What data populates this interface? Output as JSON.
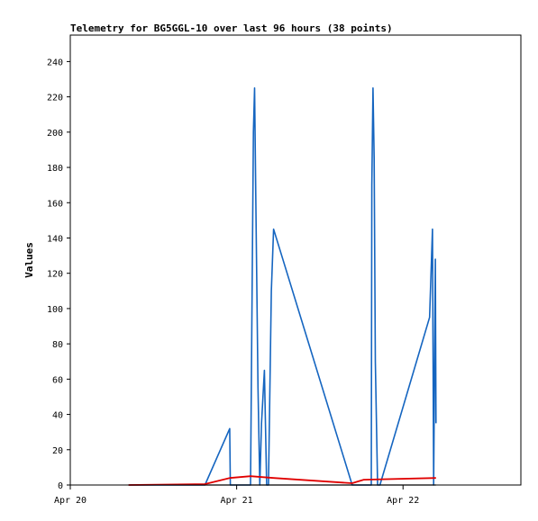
{
  "chart_data": {
    "type": "line",
    "title": "Telemetry for BG5GGL-10 over last 96 hours (38 points)",
    "xlabel": "",
    "ylabel": "Values",
    "xlim": [
      "2024-04-20T00:00",
      "2024-04-22T17:00"
    ],
    "ylim": [
      0,
      255
    ],
    "y_ticks": [
      0,
      20,
      40,
      60,
      80,
      100,
      120,
      140,
      160,
      180,
      200,
      220,
      240
    ],
    "x_ticks": [
      {
        "label": "Apr 20",
        "x": "2024-04-20T00:00"
      },
      {
        "label": "Apr 21",
        "x": "2024-04-21T00:00"
      },
      {
        "label": "Apr 22",
        "x": "2024-04-22T00:00"
      }
    ],
    "grid": false,
    "series": [
      {
        "color": "#1565c0",
        "points": [
          [
            "2024-04-20T08:25",
            0
          ],
          [
            "2024-04-20T19:25",
            0
          ],
          [
            "2024-04-20T23:00",
            32
          ],
          [
            "2024-04-20T23:05",
            0
          ],
          [
            "2024-04-21T02:00",
            0
          ],
          [
            "2024-04-21T02:25",
            200
          ],
          [
            "2024-04-21T02:35",
            225
          ],
          [
            "2024-04-21T02:45",
            165
          ],
          [
            "2024-04-21T03:05",
            55
          ],
          [
            "2024-04-21T03:20",
            0
          ],
          [
            "2024-04-21T03:35",
            35
          ],
          [
            "2024-04-21T04:00",
            65
          ],
          [
            "2024-04-21T04:20",
            0
          ],
          [
            "2024-04-21T04:35",
            0
          ],
          [
            "2024-04-21T05:00",
            110
          ],
          [
            "2024-04-21T05:20",
            145
          ],
          [
            "2024-04-21T16:40",
            0
          ],
          [
            "2024-04-21T18:20",
            0
          ],
          [
            "2024-04-21T19:25",
            0
          ],
          [
            "2024-04-21T19:30",
            170
          ],
          [
            "2024-04-21T19:40",
            225
          ],
          [
            "2024-04-21T19:50",
            185
          ],
          [
            "2024-04-21T20:00",
            70
          ],
          [
            "2024-04-21T20:20",
            0
          ],
          [
            "2024-04-21T20:40",
            0
          ],
          [
            "2024-04-22T03:50",
            95
          ],
          [
            "2024-04-22T04:15",
            145
          ],
          [
            "2024-04-22T04:25",
            0
          ],
          [
            "2024-04-22T04:40",
            128
          ],
          [
            "2024-04-22T04:45",
            35
          ]
        ]
      },
      {
        "color": "#000000",
        "points": [
          [
            "2024-04-20T08:25",
            0
          ],
          [
            "2024-04-22T04:45",
            0
          ]
        ]
      },
      {
        "color": "#e00000",
        "points": [
          [
            "2024-04-20T08:25",
            0
          ],
          [
            "2024-04-20T19:25",
            0.5
          ],
          [
            "2024-04-20T23:00",
            4
          ],
          [
            "2024-04-21T02:00",
            5
          ],
          [
            "2024-04-21T05:20",
            4
          ],
          [
            "2024-04-21T16:40",
            1
          ],
          [
            "2024-04-21T18:20",
            3
          ],
          [
            "2024-04-22T04:45",
            4
          ]
        ]
      }
    ]
  }
}
